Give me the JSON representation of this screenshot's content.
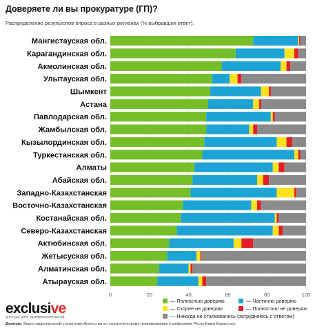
{
  "header": {
    "title": "Доверяете ли вы прокуратуре (ГП)?",
    "subtitle": "Распределение результатов опроса в разных регионах (% выбравших ответ)."
  },
  "brand": {
    "logo_main": "exclusi",
    "logo_accent": "ve",
    "tagline": "ресурс для профессионалов"
  },
  "source": {
    "label": "Данные:",
    "text": "Бюро национальной статистики Агентства по стратегическому планированию и реформам Республики Казахстан."
  },
  "colors": {
    "full_trust": "#76be29",
    "partial_trust": "#1ea4d4",
    "rather_distrust": "#ffe21f",
    "full_distrust": "#e41e25",
    "never_encountered": "#8a8a8a"
  },
  "chart_data": {
    "type": "bar",
    "orientation": "horizontal",
    "stacked": true,
    "xlim": [
      0,
      100
    ],
    "xticks": [
      0,
      20,
      40,
      60,
      80,
      100
    ],
    "grid": true,
    "legend_position": "bottom-right",
    "categories": [
      "Мангистауская обл.",
      "Карагандинская обл.",
      "Акмолинская обл.",
      "Улытауская обл.",
      "Шымкент",
      "Астана",
      "Павлодарская обл.",
      "Жамбылская обл.",
      "Кызылординская обл.",
      "Туркестанская обл.",
      "Алматы",
      "Абайская обл.",
      "Западно-Казахстанская",
      "Восточно-Казахстанская",
      "Костанайская обл.",
      "Северо-Казахстанская",
      "Актюбинская обл.",
      "Жетысуская обл.",
      "Алматинская обл.",
      "Атырауская обл."
    ],
    "series": [
      {
        "name": "Полностью доверяю",
        "color_key": "full_trust",
        "values": [
          73,
          64,
          57,
          52,
          51,
          50,
          49,
          49,
          48,
          47,
          43,
          42,
          41,
          37,
          36,
          34,
          30,
          29,
          25,
          24
        ]
      },
      {
        "name": "Частично доверяю",
        "color_key": "partial_trust",
        "values": [
          23,
          25,
          30,
          9,
          26,
          23,
          33,
          22,
          37,
          47,
          40,
          33,
          44,
          35,
          48,
          49,
          33,
          15,
          15,
          21
        ]
      },
      {
        "name": "Скорее не доверяю",
        "color_key": "rather_distrust",
        "values": [
          0.5,
          5,
          3,
          4,
          4,
          3,
          1,
          2,
          5,
          2,
          3,
          3,
          9,
          3,
          1,
          3,
          4,
          2,
          1,
          2
        ]
      },
      {
        "name": "Полностью не доверяю",
        "color_key": "full_distrust",
        "values": [
          0.5,
          2,
          2,
          2,
          1,
          1,
          1,
          2,
          3,
          1,
          3,
          3,
          1,
          2,
          1,
          2,
          6,
          0.5,
          1,
          2
        ]
      },
      {
        "name": "Никогда не сталкивались (затрудняюсь с ответом)",
        "color_key": "never_encountered",
        "values": [
          3,
          4,
          8,
          33,
          18,
          23,
          16,
          25,
          7,
          3,
          11,
          19,
          5,
          23,
          14,
          12,
          27,
          53.5,
          58,
          51
        ]
      }
    ]
  }
}
